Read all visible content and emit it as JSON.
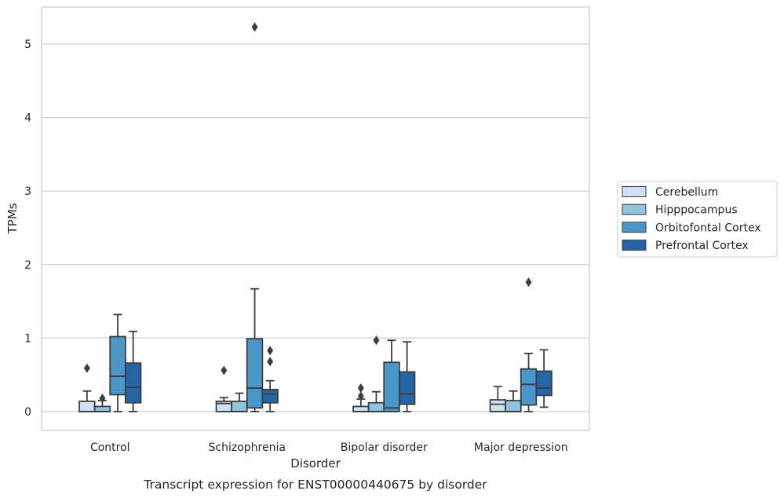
{
  "caption": "Transcript expression for ENST00000440675 by disorder",
  "chart_data": {
    "type": "box",
    "title": "",
    "xlabel": "Disorder",
    "ylabel": "TPMs",
    "categories": [
      "Control",
      "Schizophrenia",
      "Bipolar disorder",
      "Major depression"
    ],
    "ylim": [
      -0.25,
      5.5
    ],
    "yticks": [
      0,
      1,
      2,
      3,
      4,
      5
    ],
    "grid": "horizontal",
    "legend_position": "right",
    "series": [
      {
        "name": "Cerebellum",
        "color": "#cfe1f2",
        "boxes": [
          {
            "whisker_low": 0,
            "q1": 0,
            "median": 0,
            "q3": 0.14,
            "whisker_high": 0.28,
            "outliers": [
              0.59
            ]
          },
          {
            "whisker_low": 0,
            "q1": 0,
            "median": 0.11,
            "q3": 0.14,
            "whisker_high": 0.19,
            "outliers": [
              0.56
            ]
          },
          {
            "whisker_low": 0,
            "q1": 0,
            "median": 0,
            "q3": 0.07,
            "whisker_high": 0.17,
            "outliers": [
              0.21,
              0.32
            ]
          },
          {
            "whisker_low": 0,
            "q1": 0,
            "median": 0.1,
            "q3": 0.16,
            "whisker_high": 0.34,
            "outliers": []
          }
        ]
      },
      {
        "name": "Hipppocampus",
        "color": "#93c4de",
        "boxes": [
          {
            "whisker_low": 0,
            "q1": 0,
            "median": 0,
            "q3": 0.07,
            "whisker_high": 0.15,
            "outliers": [
              0.18
            ]
          },
          {
            "whisker_low": 0,
            "q1": 0,
            "median": 0,
            "q3": 0.14,
            "whisker_high": 0.25,
            "outliers": []
          },
          {
            "whisker_low": 0,
            "q1": 0,
            "median": 0,
            "q3": 0.12,
            "whisker_high": 0.27,
            "outliers": [
              0.97
            ]
          },
          {
            "whisker_low": 0,
            "q1": 0,
            "median": 0,
            "q3": 0.15,
            "whisker_high": 0.28,
            "outliers": []
          }
        ]
      },
      {
        "name": "Orbitofontal Cortex",
        "color": "#4a98c9",
        "boxes": [
          {
            "whisker_low": 0,
            "q1": 0.23,
            "median": 0.48,
            "q3": 1.02,
            "whisker_high": 1.32,
            "outliers": []
          },
          {
            "whisker_low": 0,
            "q1": 0.05,
            "median": 0.32,
            "q3": 0.99,
            "whisker_high": 1.67,
            "outliers": [
              5.23
            ]
          },
          {
            "whisker_low": 0,
            "q1": 0,
            "median": 0.05,
            "q3": 0.67,
            "whisker_high": 0.97,
            "outliers": []
          },
          {
            "whisker_low": 0,
            "q1": 0.09,
            "median": 0.37,
            "q3": 0.58,
            "whisker_high": 0.79,
            "outliers": [
              1.76
            ]
          }
        ]
      },
      {
        "name": "Prefrontal Cortex",
        "color": "#2465a8",
        "boxes": [
          {
            "whisker_low": 0,
            "q1": 0.12,
            "median": 0.33,
            "q3": 0.66,
            "whisker_high": 1.09,
            "outliers": []
          },
          {
            "whisker_low": 0,
            "q1": 0.12,
            "median": 0.24,
            "q3": 0.3,
            "whisker_high": 0.42,
            "outliers": [
              0.68,
              0.83
            ]
          },
          {
            "whisker_low": 0,
            "q1": 0.1,
            "median": 0.24,
            "q3": 0.54,
            "whisker_high": 0.95,
            "outliers": []
          },
          {
            "whisker_low": 0.06,
            "q1": 0.22,
            "median": 0.32,
            "q3": 0.55,
            "whisker_high": 0.84,
            "outliers": []
          }
        ]
      }
    ]
  }
}
